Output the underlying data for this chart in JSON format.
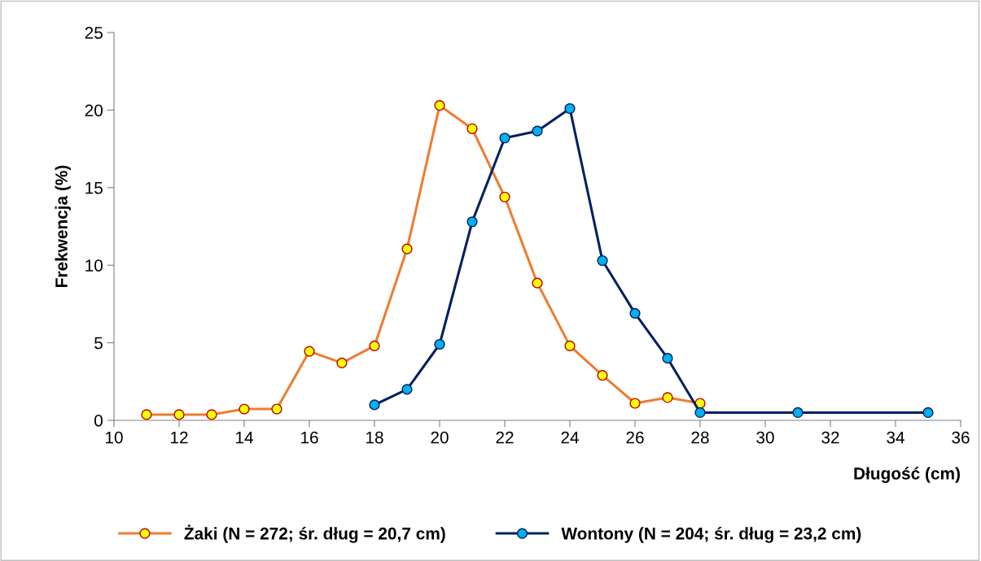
{
  "chart_data": {
    "type": "line",
    "xlabel": "Długość (cm)",
    "ylabel": "Frekwencja (%)",
    "xlim": [
      10,
      36
    ],
    "xticks": [
      10,
      12,
      14,
      16,
      18,
      20,
      22,
      24,
      26,
      28,
      30,
      32,
      34,
      36
    ],
    "ylim": [
      0,
      25
    ],
    "yticks": [
      0,
      5,
      10,
      15,
      20,
      25
    ],
    "grid": false,
    "legend": "bottom",
    "marker": "circle",
    "line_style": "solid",
    "series": [
      {
        "name": "Żaki (N = 272; śr. dług = 20,7 cm)",
        "color": "#ed7d31",
        "x": [
          11,
          12,
          13,
          14,
          15,
          16,
          17,
          18,
          19,
          20,
          21,
          22,
          23,
          24,
          25,
          26,
          27,
          28
        ],
        "values": [
          0.37,
          0.37,
          0.37,
          0.73,
          0.73,
          4.45,
          3.7,
          4.8,
          11.05,
          20.3,
          18.8,
          14.4,
          8.85,
          4.8,
          2.9,
          1.1,
          1.47,
          1.1
        ]
      },
      {
        "name": "Wontony (N = 204; śr. dług = 23,2 cm)",
        "color": "#002060",
        "x": [
          18,
          19,
          20,
          21,
          22,
          23,
          24,
          25,
          26,
          27,
          28,
          31,
          35
        ],
        "values": [
          1.0,
          2.0,
          4.9,
          12.8,
          18.2,
          18.65,
          20.1,
          10.3,
          6.9,
          4.0,
          0.5,
          0.5,
          0.5
        ]
      }
    ]
  }
}
